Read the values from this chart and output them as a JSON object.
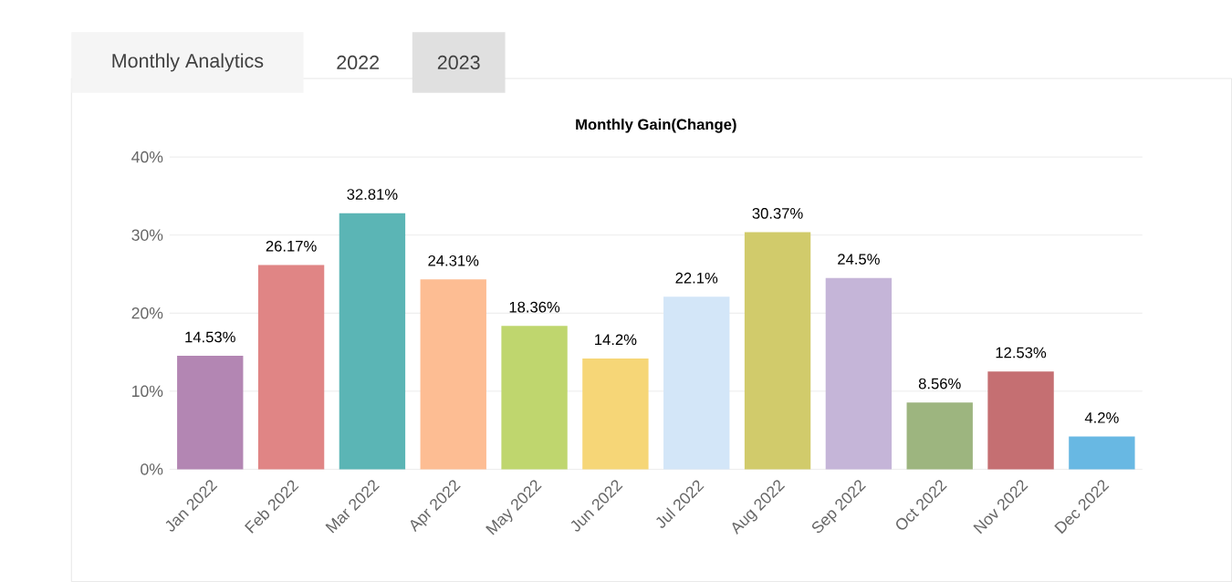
{
  "chart_data": {
    "type": "bar",
    "title": "Monthly Gain(Change)",
    "annotations": [
      "Monthly Analytics",
      "2022",
      "2023"
    ],
    "categories": [
      "Jan 2022",
      "Feb 2022",
      "Mar 2022",
      "Apr 2022",
      "May 2022",
      "Jun 2022",
      "Jul 2022",
      "Aug 2022",
      "Sep 2022",
      "Oct 2022",
      "Nov 2022",
      "Dec 2022"
    ],
    "values": [
      14.53,
      26.17,
      32.81,
      24.31,
      18.36,
      14.2,
      22.1,
      30.37,
      24.5,
      8.56,
      12.53,
      4.2
    ],
    "value_labels": [
      "14.53%",
      "26.17%",
      "32.81%",
      "24.31%",
      "18.36%",
      "14.2%",
      "22.1%",
      "30.37%",
      "24.5%",
      "8.56%",
      "12.53%",
      "4.2%"
    ],
    "colors": [
      "#b386b3",
      "#e08585",
      "#5bb5b5",
      "#fdbd93",
      "#bfd66e",
      "#f6d677",
      "#d3e6f8",
      "#d1cb6b",
      "#c5b5d8",
      "#9db57f",
      "#c56f72",
      "#68b8e3"
    ],
    "ylim": [
      0,
      40
    ],
    "yticks": [
      {
        "value": 0,
        "label": "0%"
      },
      {
        "value": 10,
        "label": "10%"
      },
      {
        "value": 20,
        "label": "20%"
      },
      {
        "value": 30,
        "label": "30%"
      },
      {
        "value": 40,
        "label": "40%"
      }
    ],
    "grid": "y"
  }
}
